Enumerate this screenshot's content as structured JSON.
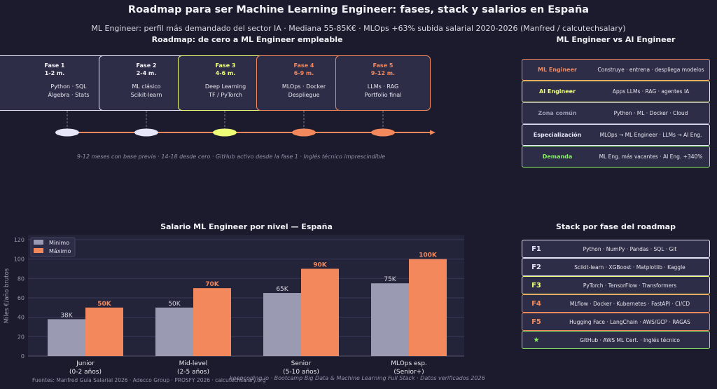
{
  "title": "Roadmap para ser Machine Learning Engineer: fases, stack y salarios en España",
  "subtitle": "ML Engineer: perfil más demandado del sector IA · Mediana 55-85K€ · MLOps +63% subida salarial 2020-2026 (Manfred / calcutechsalary)",
  "colors": {
    "background": "#1b1b2d",
    "panel": "#2d2d48",
    "white": "#e6e6f8",
    "yellow": "#eeff77",
    "orange": "#f2885c",
    "gray": "#9a9ab2",
    "green": "#88ee66"
  },
  "roadmap": {
    "title": "Roadmap: de cero a ML Engineer empleable",
    "phases": [
      {
        "name": "Fase 1",
        "duration": "1-2 m.",
        "line1": "Python · SQL",
        "line2": "Álgebra · Stats",
        "color": "#e6e6f8"
      },
      {
        "name": "Fase 2",
        "duration": "2-4 m.",
        "line1": "ML clásico",
        "line2": "Scikit-learn",
        "color": "#e6e6f8"
      },
      {
        "name": "Fase 3",
        "duration": "4-6 m.",
        "line1": "Deep Learning",
        "line2": "TF / PyTorch",
        "color": "#eeff77"
      },
      {
        "name": "Fase 4",
        "duration": "6-9 m.",
        "line1": "MLOps · Docker",
        "line2": "Despliegue",
        "color": "#f2885c"
      },
      {
        "name": "Fase 5",
        "duration": "9-12 m.",
        "line1": "LLMs · RAG",
        "line2": "Portfolio final",
        "color": "#f2885c"
      }
    ],
    "caption": "9-12 meses con base previa · 14-18 desde cero · GitHub activo desde la fase 1 · Inglés técnico imprescindible"
  },
  "comparison": {
    "title": "ML Engineer vs AI Engineer",
    "rows": [
      {
        "key": "ML Engineer",
        "value": "Construye · entrena · despliega modelos",
        "color": "#f2885c"
      },
      {
        "key": "AI Engineer",
        "value": "Apps LLMs · RAG · agentes IA",
        "color": "#eeff77"
      },
      {
        "key": "Zona común",
        "value": "Python · ML · Docker · Cloud",
        "color": "#9a9ab2"
      },
      {
        "key": "Especialización",
        "value": "MLOps → ML Engineer · LLMs → AI Eng.",
        "color": "#e6e6f8"
      },
      {
        "key": "Demanda",
        "value": "ML Eng. más vacantes · AI Eng. +340%",
        "color": "#88ee66"
      }
    ]
  },
  "stack": {
    "title": "Stack por fase del roadmap",
    "rows": [
      {
        "key": "F1",
        "value": "Python · NumPy · Pandas · SQL · Git",
        "color": "#e6e6f8"
      },
      {
        "key": "F2",
        "value": "Scikit-learn · XGBoost · Matplotlib · Kaggle",
        "color": "#e6e6f8"
      },
      {
        "key": "F3",
        "value": "PyTorch · TensorFlow · Transformers",
        "color": "#eeff77"
      },
      {
        "key": "F4",
        "value": "MLflow · Docker · Kubernetes · FastAPI · CI/CD",
        "color": "#f2885c"
      },
      {
        "key": "F5",
        "value": "Hugging Face · LangChain · AWS/GCP · RAGAS",
        "color": "#f2885c"
      },
      {
        "key": "★",
        "value": "GitHub · AWS ML Cert. · Inglés técnico",
        "color": "#88ee66"
      }
    ]
  },
  "chart_data": {
    "type": "bar",
    "title": "Salario ML Engineer por nivel — España",
    "xlabel": "",
    "ylabel": "Miles €/año brutos",
    "ylim": [
      0,
      125
    ],
    "yticks": [
      "0",
      "20",
      "40",
      "60",
      "80",
      "100",
      "120"
    ],
    "grid": true,
    "legend_position": "top-left",
    "categories": [
      [
        "Junior",
        "(0-2 años)"
      ],
      [
        "Mid-level",
        "(2-5 años)"
      ],
      [
        "Senior",
        "(5-10 años)"
      ],
      [
        "MLOps esp.",
        "(Senior+)"
      ]
    ],
    "series": [
      {
        "name": "Mínimo",
        "values": [
          38,
          50,
          65,
          75
        ],
        "labels": [
          "38K",
          "50K",
          "65K",
          "75K"
        ],
        "color": "#9a9ab2"
      },
      {
        "name": "Máximo",
        "values": [
          50,
          70,
          90,
          100
        ],
        "labels": [
          "50K",
          "70K",
          "90K",
          "100K"
        ],
        "color": "#f2885c"
      }
    ]
  },
  "footer": {
    "sources": "Fuentes: Manfred Guía Salarial 2026 · Adecco Group · PROSFY 2026 · calcutechsalary.org",
    "brand": "keepcoding.io  ·  Bootcamp Big Data & Machine Learning Full Stack  ·  Datos verificados 2026"
  }
}
